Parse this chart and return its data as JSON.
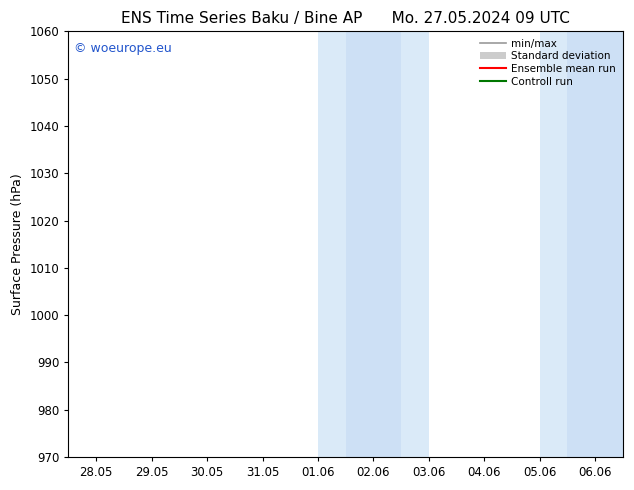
{
  "title_left": "ENS Time Series Baku / Bine AP",
  "title_right": "Mo. 27.05.2024 09 UTC",
  "ylabel": "Surface Pressure (hPa)",
  "ylim": [
    970,
    1060
  ],
  "yticks": [
    970,
    980,
    990,
    1000,
    1010,
    1020,
    1030,
    1040,
    1050,
    1060
  ],
  "xtick_labels": [
    "28.05",
    "29.05",
    "30.05",
    "31.05",
    "01.06",
    "02.06",
    "03.06",
    "04.06",
    "05.06",
    "06.06"
  ],
  "xtick_positions": [
    0,
    1,
    2,
    3,
    4,
    5,
    6,
    7,
    8,
    9
  ],
  "xlim": [
    -0.5,
    9.5
  ],
  "background_color": "#ffffff",
  "plot_bg_color": "#ffffff",
  "shaded_regions": [
    {
      "xmin": 4,
      "xmax": 6,
      "color": "#daeaf8"
    },
    {
      "xmin": 8,
      "xmax": 9.5,
      "color": "#daeaf8"
    }
  ],
  "shaded_inner_regions": [
    {
      "xmin": 4.5,
      "xmax": 5.5,
      "color": "#cde0f5"
    },
    {
      "xmin": 8.5,
      "xmax": 9.5,
      "color": "#cde0f5"
    }
  ],
  "watermark_text": "© woeurope.eu",
  "watermark_color": "#2255cc",
  "legend_items": [
    {
      "label": "min/max",
      "color": "#999999",
      "lw": 1.2,
      "style": "solid",
      "type": "line"
    },
    {
      "label": "Standard deviation",
      "color": "#cccccc",
      "lw": 8,
      "style": "solid",
      "type": "patch"
    },
    {
      "label": "Ensemble mean run",
      "color": "#ff0000",
      "lw": 1.5,
      "style": "solid",
      "type": "line"
    },
    {
      "label": "Controll run",
      "color": "#007700",
      "lw": 1.5,
      "style": "solid",
      "type": "line"
    }
  ],
  "font_family": "DejaVu Sans",
  "title_fontsize": 11,
  "axis_fontsize": 9,
  "tick_fontsize": 8.5,
  "watermark_fontsize": 9
}
